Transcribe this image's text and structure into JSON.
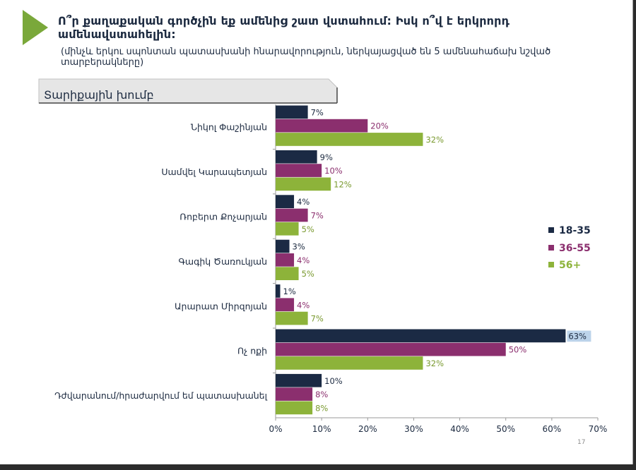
{
  "title": "Ո՞ր քաղաքական գործչին եք ամենից շատ վստահում: Իսկ ո՞վ է երկրորդ ամենավստահելին:",
  "subtitle": "(մինչև երկու սպոնտան պատասխանի հնարավորություն, ներկայացված են 5 ամենահաճախ նշված տարբերակները)",
  "section_label": "Տարիքային խումբ",
  "page_number": "17",
  "colors": {
    "series_18_35": "#1b2a44",
    "series_36_55": "#8b2f6e",
    "series_56_plus": "#8db33a",
    "accent_triangle": "#7aa83a"
  },
  "chart_data": {
    "type": "bar",
    "orientation": "horizontal",
    "categories": [
      "Նիկոլ Փաշինյան",
      "Սամվել Կարապետյան",
      "Ռոբերտ Քոչարյան",
      "Գագիկ Ծառուկյան",
      "Արարատ Միրզոյան",
      "Ոչ ոքի",
      "Դժվարանում/հրաժարվում եմ պատասխանել"
    ],
    "series": [
      {
        "name": "18-35",
        "values": [
          7,
          9,
          4,
          3,
          1,
          63,
          10
        ],
        "labels": [
          "7%",
          "9%",
          "4%",
          "3%",
          "1%",
          "63%",
          "10%"
        ]
      },
      {
        "name": "36-55",
        "values": [
          20,
          10,
          7,
          4,
          4,
          50,
          8
        ],
        "labels": [
          "20%",
          "10%",
          "7%",
          "4%",
          "4%",
          "50%",
          "8%"
        ]
      },
      {
        "name": "56+",
        "values": [
          32,
          12,
          5,
          5,
          7,
          32,
          8
        ],
        "labels": [
          "32%",
          "12%",
          "5%",
          "5%",
          "7%",
          "32%",
          "8%"
        ]
      }
    ],
    "xlim": [
      0,
      70
    ],
    "xticks": [
      "0%",
      "10%",
      "20%",
      "30%",
      "40%",
      "50%",
      "60%",
      "70%"
    ],
    "xlabel": "",
    "ylabel": "",
    "legend_position": "right",
    "grid": false
  }
}
